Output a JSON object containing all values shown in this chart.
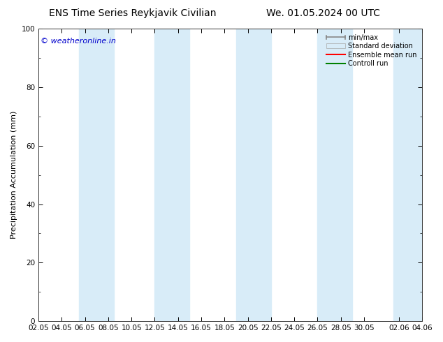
{
  "title_left": "ENS Time Series Reykjavik Civilian",
  "title_right": "We. 01.05.2024 00 UTC",
  "ylabel": "Precipitation Accumulation (mm)",
  "watermark": "© weatheronline.in",
  "watermark_color": "#0000cc",
  "ylim": [
    0,
    100
  ],
  "yticks": [
    0,
    20,
    40,
    60,
    80,
    100
  ],
  "xtick_positions": [
    0,
    2,
    4,
    6,
    8,
    10,
    12,
    14,
    16,
    18,
    20,
    22,
    24,
    26,
    28,
    31,
    33
  ],
  "xtick_labels": [
    "02.05",
    "04.05",
    "06.05",
    "08.05",
    "10.05",
    "12.05",
    "14.05",
    "16.05",
    "18.05",
    "20.05",
    "22.05",
    "24.05",
    "26.05",
    "28.05",
    "30.05",
    "02.06",
    "04.06"
  ],
  "xlim": [
    0,
    33
  ],
  "bg_color": "#ffffff",
  "plot_bg_color": "#ffffff",
  "band_color": "#d8ecf8",
  "band_positions": [
    [
      3.5,
      6.5
    ],
    [
      10.0,
      13.0
    ],
    [
      17.0,
      20.0
    ],
    [
      24.0,
      27.0
    ],
    [
      30.5,
      33.0
    ]
  ],
  "legend_entries": [
    {
      "label": "min/max",
      "color": "#aaaaaa",
      "style": "errorbar"
    },
    {
      "label": "Standard deviation",
      "color": "#d8ecf8",
      "style": "band"
    },
    {
      "label": "Ensemble mean run",
      "color": "#ff0000",
      "style": "line"
    },
    {
      "label": "Controll run",
      "color": "#008000",
      "style": "line"
    }
  ],
  "title_fontsize": 10,
  "axis_fontsize": 8,
  "tick_fontsize": 7.5,
  "watermark_fontsize": 8
}
